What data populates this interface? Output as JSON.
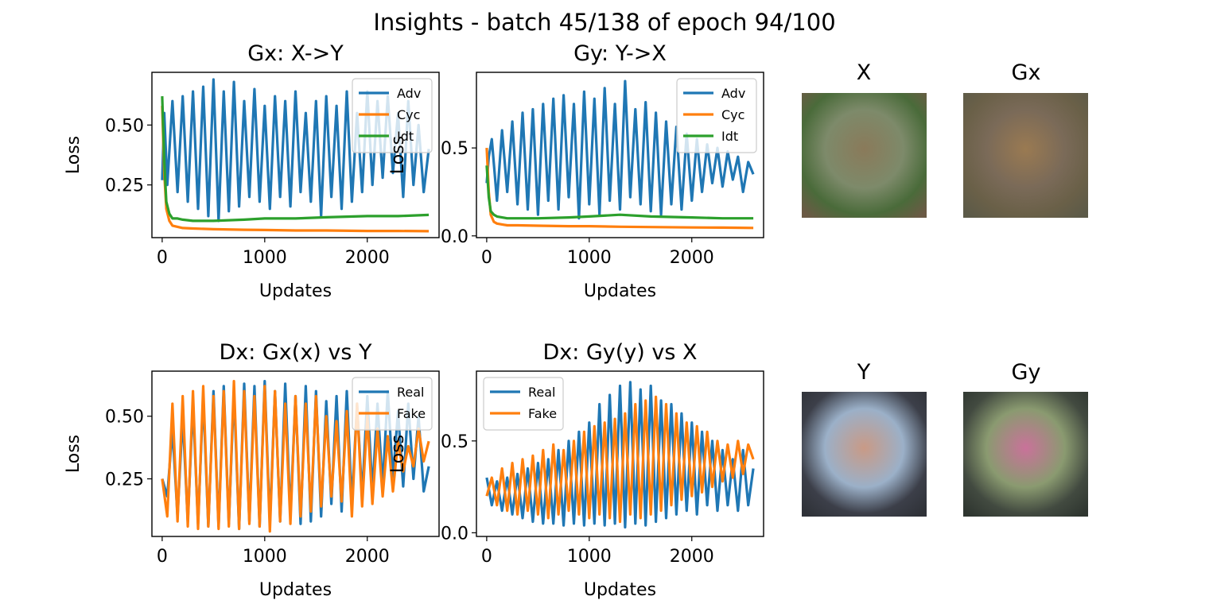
{
  "figure": {
    "title": "Insights - batch 45/138 of epoch 94/100"
  },
  "chart_data": [
    {
      "type": "line",
      "title": "Gx: X->Y",
      "xlabel": "Updates",
      "ylabel": "Loss",
      "xlim": [
        -100,
        2700
      ],
      "ylim": [
        0.03,
        0.72
      ],
      "xticks": [
        0,
        1000,
        2000
      ],
      "yticks": [
        0.25,
        0.5
      ],
      "ytick_labels": [
        "0.25",
        "0.50"
      ],
      "legend": "top-right",
      "grid": false,
      "series": [
        {
          "name": "Adv",
          "color": "#1f77b4",
          "x": [
            0,
            20,
            50,
            100,
            150,
            200,
            250,
            300,
            350,
            400,
            450,
            500,
            550,
            600,
            650,
            700,
            750,
            800,
            850,
            900,
            950,
            1000,
            1050,
            1100,
            1150,
            1200,
            1250,
            1300,
            1350,
            1400,
            1450,
            1500,
            1550,
            1600,
            1650,
            1700,
            1750,
            1800,
            1850,
            1900,
            1950,
            2000,
            2050,
            2100,
            2150,
            2200,
            2250,
            2300,
            2350,
            2400,
            2450,
            2500,
            2550,
            2600
          ],
          "y": [
            0.27,
            0.55,
            0.25,
            0.6,
            0.22,
            0.62,
            0.18,
            0.64,
            0.15,
            0.66,
            0.12,
            0.69,
            0.1,
            0.64,
            0.14,
            0.68,
            0.16,
            0.6,
            0.2,
            0.65,
            0.18,
            0.58,
            0.15,
            0.62,
            0.2,
            0.6,
            0.16,
            0.64,
            0.22,
            0.55,
            0.18,
            0.6,
            0.12,
            0.62,
            0.2,
            0.58,
            0.15,
            0.64,
            0.18,
            0.55,
            0.22,
            0.64,
            0.25,
            0.6,
            0.28,
            0.62,
            0.3,
            0.55,
            0.2,
            0.6,
            0.25,
            0.5,
            0.22,
            0.4
          ]
        },
        {
          "name": "Cyc",
          "color": "#ff7f0e",
          "x": [
            0,
            20,
            40,
            70,
            100,
            150,
            200,
            300,
            500,
            800,
            1000,
            1300,
            1600,
            2000,
            2300,
            2600
          ],
          "y": [
            0.58,
            0.3,
            0.15,
            0.1,
            0.08,
            0.075,
            0.07,
            0.068,
            0.065,
            0.063,
            0.062,
            0.06,
            0.06,
            0.058,
            0.058,
            0.057
          ]
        },
        {
          "name": "Idt",
          "color": "#2ca02c",
          "x": [
            0,
            20,
            40,
            70,
            100,
            150,
            200,
            300,
            500,
            800,
            1000,
            1300,
            1600,
            2000,
            2300,
            2600
          ],
          "y": [
            0.62,
            0.35,
            0.18,
            0.13,
            0.11,
            0.11,
            0.105,
            0.1,
            0.1,
            0.105,
            0.11,
            0.11,
            0.115,
            0.12,
            0.12,
            0.125
          ]
        }
      ]
    },
    {
      "type": "line",
      "title": "Gy: Y->X",
      "xlabel": "Updates",
      "ylabel": "Loss",
      "xlim": [
        -100,
        2700
      ],
      "ylim": [
        -0.01,
        0.93
      ],
      "xticks": [
        0,
        1000,
        2000
      ],
      "yticks": [
        0.0,
        0.5
      ],
      "ytick_labels": [
        "0.0",
        "0.5"
      ],
      "legend": "top-right",
      "grid": false,
      "series": [
        {
          "name": "Adv",
          "color": "#1f77b4",
          "x": [
            0,
            20,
            50,
            100,
            150,
            200,
            250,
            300,
            350,
            400,
            450,
            500,
            550,
            600,
            650,
            700,
            750,
            800,
            850,
            900,
            950,
            1000,
            1050,
            1100,
            1150,
            1200,
            1250,
            1300,
            1350,
            1400,
            1450,
            1500,
            1550,
            1600,
            1650,
            1700,
            1750,
            1800,
            1850,
            1900,
            1950,
            2000,
            2050,
            2100,
            2150,
            2200,
            2250,
            2300,
            2350,
            2400,
            2450,
            2500,
            2550,
            2600
          ],
          "y": [
            0.3,
            0.45,
            0.55,
            0.2,
            0.6,
            0.25,
            0.65,
            0.18,
            0.7,
            0.15,
            0.72,
            0.12,
            0.75,
            0.2,
            0.78,
            0.15,
            0.8,
            0.22,
            0.75,
            0.1,
            0.82,
            0.18,
            0.78,
            0.12,
            0.84,
            0.2,
            0.75,
            0.15,
            0.88,
            0.22,
            0.72,
            0.18,
            0.76,
            0.14,
            0.7,
            0.12,
            0.65,
            0.18,
            0.62,
            0.15,
            0.58,
            0.2,
            0.55,
            0.25,
            0.52,
            0.3,
            0.5,
            0.28,
            0.48,
            0.32,
            0.45,
            0.25,
            0.42,
            0.35
          ]
        },
        {
          "name": "Cyc",
          "color": "#ff7f0e",
          "x": [
            0,
            20,
            40,
            70,
            100,
            150,
            200,
            300,
            500,
            800,
            1000,
            1300,
            1600,
            2000,
            2300,
            2600
          ],
          "y": [
            0.5,
            0.25,
            0.12,
            0.08,
            0.07,
            0.065,
            0.06,
            0.06,
            0.058,
            0.055,
            0.055,
            0.052,
            0.05,
            0.048,
            0.047,
            0.045
          ]
        },
        {
          "name": "Idt",
          "color": "#2ca02c",
          "x": [
            0,
            20,
            40,
            70,
            100,
            150,
            200,
            300,
            500,
            800,
            1000,
            1300,
            1600,
            2000,
            2300,
            2600
          ],
          "y": [
            0.4,
            0.22,
            0.14,
            0.12,
            0.11,
            0.105,
            0.1,
            0.1,
            0.1,
            0.105,
            0.11,
            0.12,
            0.11,
            0.105,
            0.1,
            0.1
          ]
        }
      ]
    },
    {
      "type": "line",
      "title": "Dx: Gx(x) vs Y",
      "xlabel": "Updates",
      "ylabel": "Loss",
      "xlim": [
        -100,
        2700
      ],
      "ylim": [
        0.02,
        0.68
      ],
      "xticks": [
        0,
        1000,
        2000
      ],
      "yticks": [
        0.25,
        0.5
      ],
      "ytick_labels": [
        "0.25",
        "0.50"
      ],
      "legend": "top-right",
      "grid": false,
      "series": [
        {
          "name": "Real",
          "color": "#1f77b4",
          "x": [
            0,
            50,
            100,
            150,
            200,
            250,
            300,
            350,
            400,
            450,
            500,
            550,
            600,
            650,
            700,
            750,
            800,
            850,
            900,
            950,
            1000,
            1050,
            1100,
            1150,
            1200,
            1250,
            1300,
            1350,
            1400,
            1450,
            1500,
            1550,
            1600,
            1650,
            1700,
            1750,
            1800,
            1850,
            1900,
            1950,
            2000,
            2050,
            2100,
            2150,
            2200,
            2250,
            2300,
            2350,
            2400,
            2450,
            2500,
            2550,
            2600
          ],
          "y": [
            0.25,
            0.18,
            0.45,
            0.1,
            0.5,
            0.08,
            0.55,
            0.07,
            0.58,
            0.06,
            0.6,
            0.06,
            0.62,
            0.07,
            0.6,
            0.05,
            0.63,
            0.08,
            0.62,
            0.06,
            0.64,
            0.07,
            0.6,
            0.08,
            0.63,
            0.1,
            0.58,
            0.07,
            0.62,
            0.08,
            0.6,
            0.1,
            0.56,
            0.15,
            0.58,
            0.12,
            0.6,
            0.15,
            0.55,
            0.18,
            0.58,
            0.2,
            0.55,
            0.22,
            0.6,
            0.25,
            0.52,
            0.22,
            0.55,
            0.25,
            0.5,
            0.2,
            0.3
          ]
        },
        {
          "name": "Fake",
          "color": "#ff7f0e",
          "x": [
            0,
            50,
            100,
            150,
            200,
            250,
            300,
            350,
            400,
            450,
            500,
            550,
            600,
            650,
            700,
            750,
            800,
            850,
            900,
            950,
            1000,
            1050,
            1100,
            1150,
            1200,
            1250,
            1300,
            1350,
            1400,
            1450,
            1500,
            1550,
            1600,
            1650,
            1700,
            1750,
            1800,
            1850,
            1900,
            1950,
            2000,
            2050,
            2100,
            2150,
            2200,
            2250,
            2300,
            2350,
            2400,
            2450,
            2500,
            2550,
            2600
          ],
          "y": [
            0.25,
            0.1,
            0.55,
            0.08,
            0.58,
            0.06,
            0.6,
            0.05,
            0.62,
            0.06,
            0.58,
            0.05,
            0.6,
            0.06,
            0.64,
            0.05,
            0.6,
            0.07,
            0.58,
            0.06,
            0.62,
            0.04,
            0.6,
            0.08,
            0.55,
            0.07,
            0.58,
            0.1,
            0.55,
            0.12,
            0.58,
            0.14,
            0.5,
            0.18,
            0.48,
            0.16,
            0.52,
            0.1,
            0.55,
            0.14,
            0.5,
            0.15,
            0.45,
            0.18,
            0.42,
            0.2,
            0.4,
            0.28,
            0.38,
            0.3,
            0.45,
            0.32,
            0.4
          ]
        }
      ]
    },
    {
      "type": "line",
      "title": "Dx: Gy(y) vs X",
      "xlabel": "Updates",
      "ylabel": "Loss",
      "xlim": [
        -100,
        2700
      ],
      "ylim": [
        -0.02,
        0.88
      ],
      "xticks": [
        0,
        1000,
        2000
      ],
      "yticks": [
        0.0,
        0.5
      ],
      "ytick_labels": [
        "0.0",
        "0.5"
      ],
      "legend": "top-left",
      "grid": false,
      "series": [
        {
          "name": "Real",
          "color": "#1f77b4",
          "x": [
            0,
            50,
            100,
            150,
            200,
            250,
            300,
            350,
            400,
            450,
            500,
            550,
            600,
            650,
            700,
            750,
            800,
            850,
            900,
            950,
            1000,
            1050,
            1100,
            1150,
            1200,
            1250,
            1300,
            1350,
            1400,
            1450,
            1500,
            1550,
            1600,
            1650,
            1700,
            1750,
            1800,
            1850,
            1900,
            1950,
            2000,
            2050,
            2100,
            2150,
            2200,
            2250,
            2300,
            2350,
            2400,
            2450,
            2500,
            2550,
            2600
          ],
          "y": [
            0.3,
            0.15,
            0.28,
            0.12,
            0.3,
            0.1,
            0.32,
            0.08,
            0.35,
            0.06,
            0.38,
            0.05,
            0.4,
            0.05,
            0.45,
            0.04,
            0.5,
            0.05,
            0.55,
            0.04,
            0.6,
            0.05,
            0.7,
            0.04,
            0.75,
            0.05,
            0.8,
            0.03,
            0.82,
            0.05,
            0.78,
            0.04,
            0.8,
            0.06,
            0.72,
            0.08,
            0.7,
            0.1,
            0.65,
            0.12,
            0.6,
            0.1,
            0.55,
            0.15,
            0.5,
            0.12,
            0.45,
            0.15,
            0.4,
            0.12,
            0.45,
            0.15,
            0.35
          ]
        },
        {
          "name": "Fake",
          "color": "#ff7f0e",
          "x": [
            0,
            50,
            100,
            150,
            200,
            250,
            300,
            350,
            400,
            450,
            500,
            550,
            600,
            650,
            700,
            750,
            800,
            850,
            900,
            950,
            1000,
            1050,
            1100,
            1150,
            1200,
            1250,
            1300,
            1350,
            1400,
            1450,
            1500,
            1550,
            1600,
            1650,
            1700,
            1750,
            1800,
            1850,
            1900,
            1950,
            2000,
            2050,
            2100,
            2150,
            2200,
            2250,
            2300,
            2350,
            2400,
            2450,
            2500,
            2550,
            2600
          ],
          "y": [
            0.2,
            0.3,
            0.15,
            0.35,
            0.12,
            0.38,
            0.1,
            0.4,
            0.12,
            0.42,
            0.1,
            0.45,
            0.08,
            0.48,
            0.1,
            0.45,
            0.12,
            0.5,
            0.1,
            0.55,
            0.08,
            0.58,
            0.1,
            0.6,
            0.08,
            0.62,
            0.06,
            0.65,
            0.1,
            0.7,
            0.08,
            0.72,
            0.1,
            0.74,
            0.12,
            0.7,
            0.15,
            0.65,
            0.18,
            0.6,
            0.2,
            0.58,
            0.22,
            0.55,
            0.25,
            0.5,
            0.28,
            0.48,
            0.3,
            0.5,
            0.32,
            0.48,
            0.4
          ]
        }
      ]
    }
  ],
  "images": [
    {
      "title": "X",
      "colors": [
        "#4a6b3a",
        "#8a7a5a",
        "#6b5a45",
        "#7d8a6a"
      ]
    },
    {
      "title": "Gx",
      "colors": [
        "#6a6048",
        "#9a7a52",
        "#5c5a48",
        "#7a6a58"
      ]
    },
    {
      "title": "Y",
      "colors": [
        "#3c3f49",
        "#c99a86",
        "#2f3238",
        "#9bb0c8"
      ]
    },
    {
      "title": "Gy",
      "colors": [
        "#424a40",
        "#c9729a",
        "#2f3630",
        "#8a9a70"
      ]
    }
  ]
}
